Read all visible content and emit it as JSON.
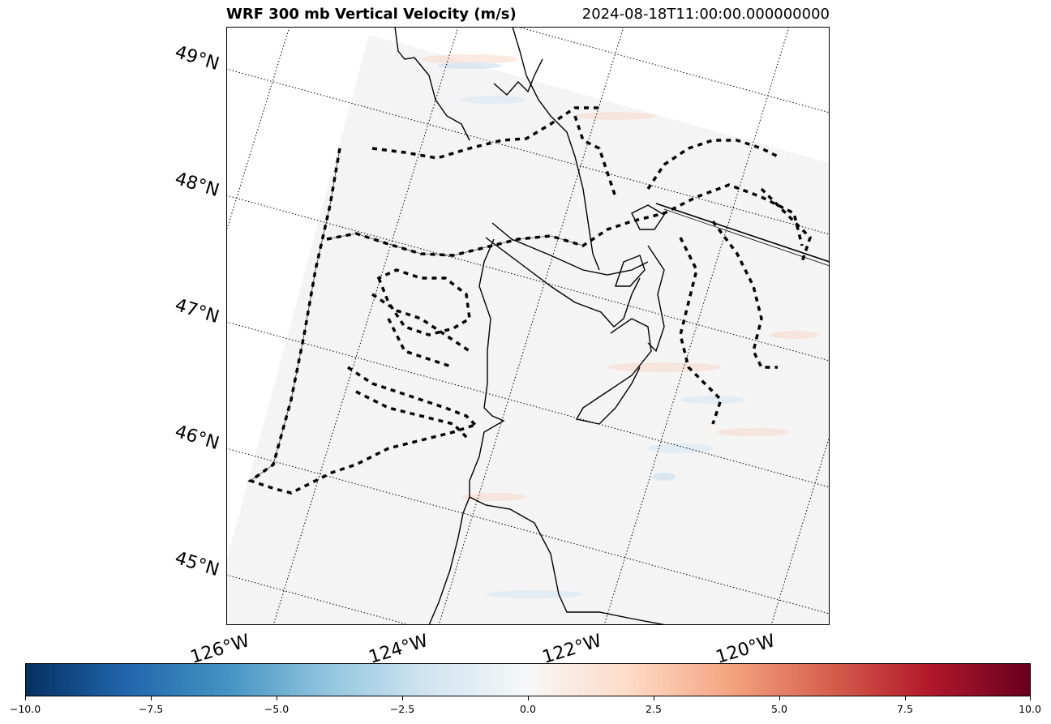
{
  "header": {
    "title": "WRF 300 mb Vertical Velocity (m/s)",
    "timestamp": "2024-08-18T11:00:00.000000000"
  },
  "map": {
    "field": "300 mb vertical velocity",
    "lat_labels": [
      "49°N",
      "48°N",
      "47°N",
      "46°N",
      "45°N"
    ],
    "lon_labels": [
      "126°W",
      "124°W",
      "122°W",
      "120°W"
    ],
    "gridlines": "dotted",
    "background_value_color": "#f4f4f4"
  },
  "colorbar": {
    "colormap": "RdBu_r",
    "vmin": -10.0,
    "vmax": 10.0,
    "ticks": [
      "−10.0",
      "−7.5",
      "−5.0",
      "−2.5",
      "0.0",
      "2.5",
      "5.0",
      "7.5",
      "10.0"
    ],
    "colors": [
      "#053061",
      "#2166ac",
      "#4393c3",
      "#92c5de",
      "#d1e5f0",
      "#f7f7f7",
      "#fddbc7",
      "#f4a582",
      "#d6604d",
      "#b2182b",
      "#67001f"
    ]
  }
}
